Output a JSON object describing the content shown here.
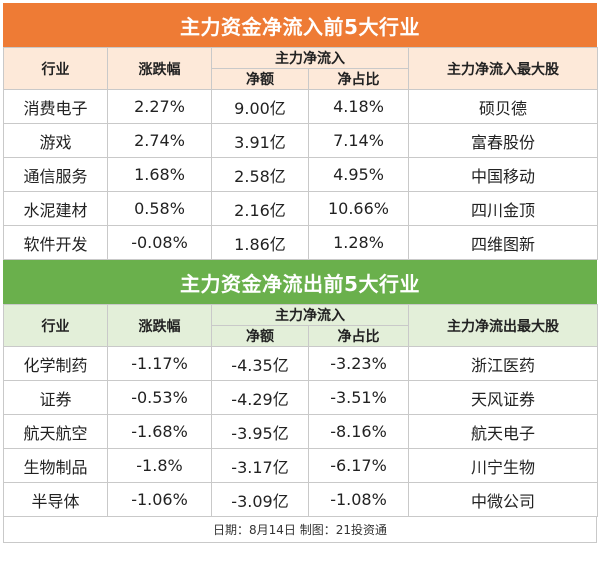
{
  "inflow": {
    "title": "主力资金净流入前5大行业",
    "headers": {
      "industry": "行业",
      "change": "涨跌幅",
      "net_flow_group": "主力净流入",
      "net_amount": "净额",
      "net_ratio": "净占比",
      "top_stock": "主力净流入最大股"
    },
    "rows": [
      {
        "industry": "消费电子",
        "change": "2.27%",
        "amount": "9.00亿",
        "ratio": "4.18%",
        "stock": "硕贝德"
      },
      {
        "industry": "游戏",
        "change": "2.74%",
        "amount": "3.91亿",
        "ratio": "7.14%",
        "stock": "富春股份"
      },
      {
        "industry": "通信服务",
        "change": "1.68%",
        "amount": "2.58亿",
        "ratio": "4.95%",
        "stock": "中国移动"
      },
      {
        "industry": "水泥建材",
        "change": "0.58%",
        "amount": "2.16亿",
        "ratio": "10.66%",
        "stock": "四川金顶"
      },
      {
        "industry": "软件开发",
        "change": "-0.08%",
        "amount": "1.86亿",
        "ratio": "1.28%",
        "stock": "四维图新"
      }
    ]
  },
  "outflow": {
    "title": "主力资金净流出前5大行业",
    "headers": {
      "industry": "行业",
      "change": "涨跌幅",
      "net_flow_group": "主力净流入",
      "net_amount": "净额",
      "net_ratio": "净占比",
      "top_stock": "主力净流出最大股"
    },
    "rows": [
      {
        "industry": "化学制药",
        "change": "-1.17%",
        "amount": "-4.35亿",
        "ratio": "-3.23%",
        "stock": "浙江医药"
      },
      {
        "industry": "证券",
        "change": "-0.53%",
        "amount": "-4.29亿",
        "ratio": "-3.51%",
        "stock": "天风证券"
      },
      {
        "industry": "航天航空",
        "change": "-1.68%",
        "amount": "-3.95亿",
        "ratio": "-8.16%",
        "stock": "航天电子"
      },
      {
        "industry": "生物制品",
        "change": "-1.8%",
        "amount": "-3.17亿",
        "ratio": "-6.17%",
        "stock": "川宁生物"
      },
      {
        "industry": "半导体",
        "change": "-1.06%",
        "amount": "-3.09亿",
        "ratio": "-1.08%",
        "stock": "中微公司"
      }
    ]
  },
  "footer": "日期：8月14日 制图：21投资通",
  "colors": {
    "orange": "#ee7b35",
    "green": "#6ab04c",
    "orange_header_bg": "#fde9d9",
    "green_header_bg": "#e3efd9"
  }
}
